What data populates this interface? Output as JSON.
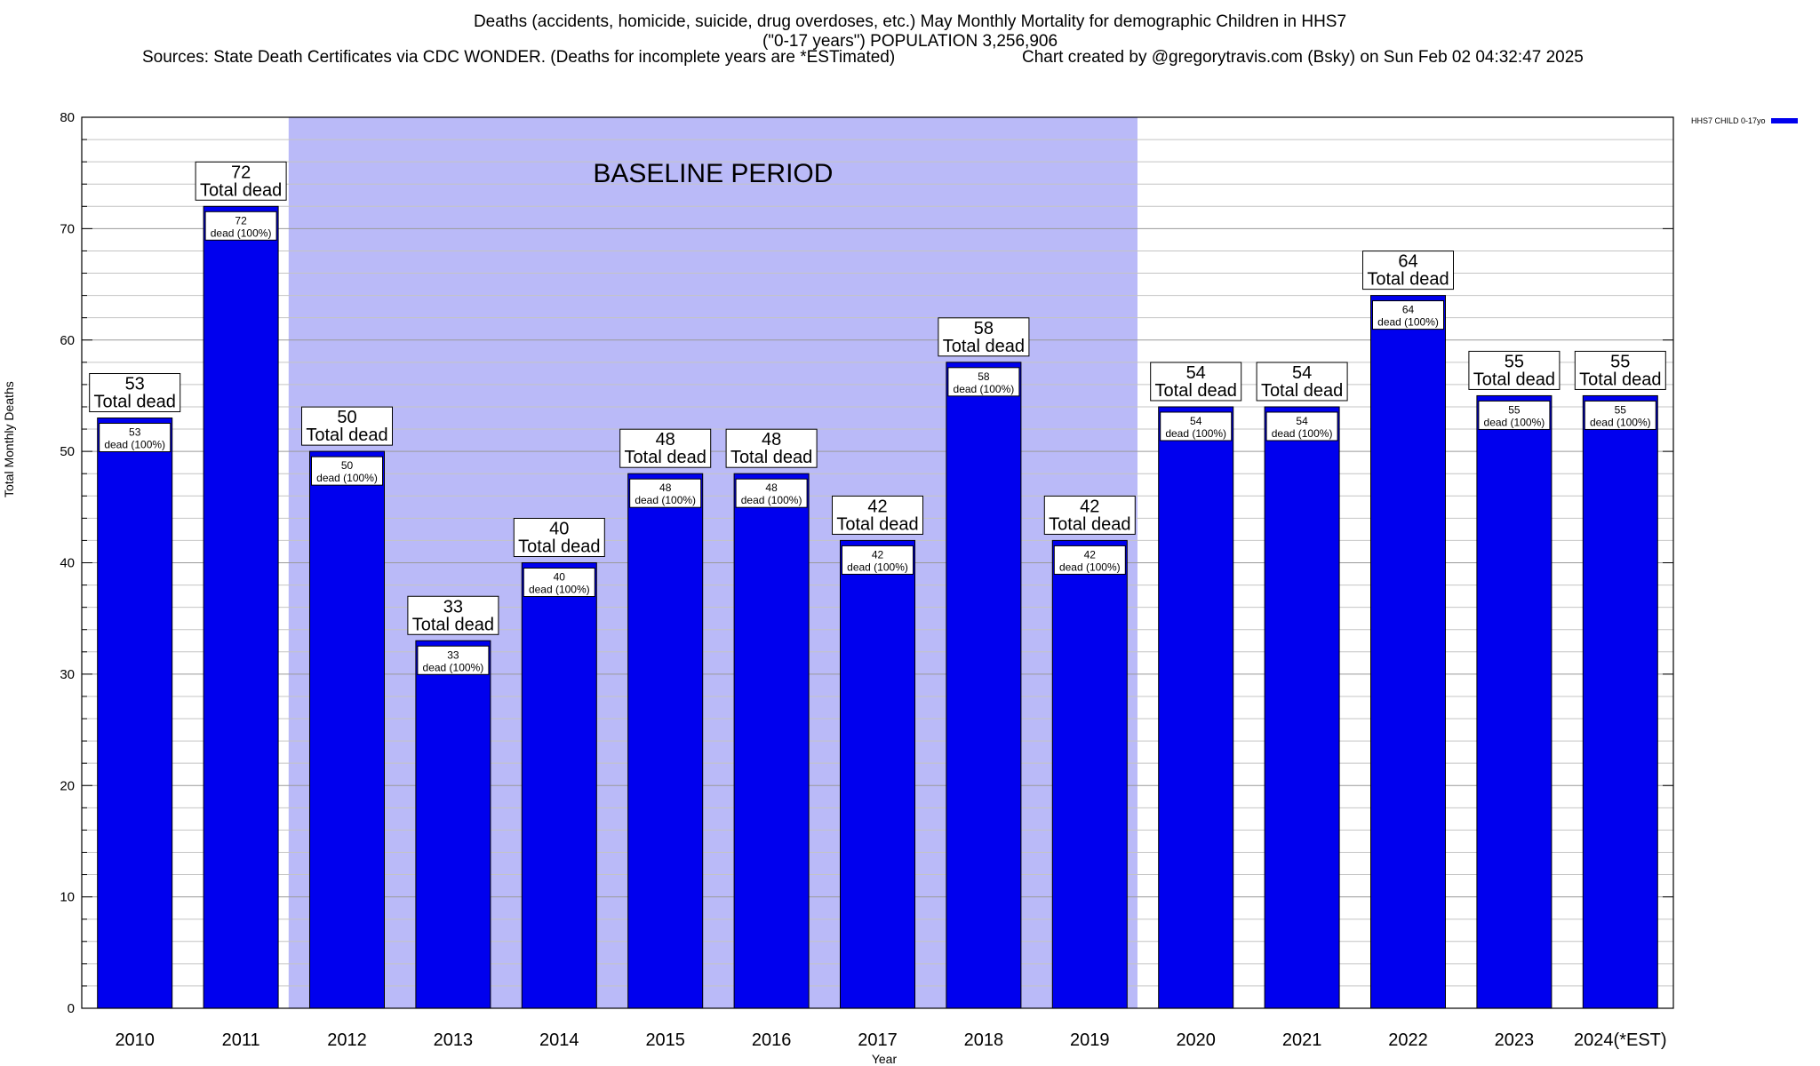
{
  "title": {
    "line1": "Deaths (accidents, homicide, suicide, drug overdoses, etc.) May Monthly Mortality for demographic Children in HHS7",
    "line2": "(\"0-17 years\") POPULATION 3,256,906",
    "sources": "Sources: State Death Certificates via CDC WONDER. (Deaths for incomplete years are *ESTimated)",
    "credit": "Chart created by @gregorytravis.com (Bsky) on Sun Feb 02 04:32:47 2025"
  },
  "legend": {
    "label": "HHS7 CHILD 0-17yo",
    "color": "#0000ee"
  },
  "annotation": {
    "baseline_label": "BASELINE PERIOD",
    "baseline_start": "2012",
    "baseline_end": "2019",
    "shade_color": "#babaf8"
  },
  "chart_data": {
    "type": "bar",
    "categories": [
      "2010",
      "2011",
      "2012",
      "2013",
      "2014",
      "2015",
      "2016",
      "2017",
      "2018",
      "2019",
      "2020",
      "2021",
      "2022",
      "2023",
      "2024(*EST)"
    ],
    "series": [
      {
        "name": "HHS7 CHILD 0-17yo",
        "values": [
          53,
          72,
          50,
          33,
          40,
          48,
          48,
          42,
          58,
          42,
          54,
          54,
          64,
          55,
          55
        ]
      }
    ],
    "total_label": "Total dead",
    "inner_label": "dead (100%)",
    "xlabel": "Year",
    "ylabel": "Total Monthly Deaths",
    "ylim": [
      0,
      80
    ],
    "yticks": [
      0,
      10,
      20,
      30,
      40,
      50,
      60,
      70,
      80
    ],
    "grid": true,
    "legend_position": "top-right"
  }
}
